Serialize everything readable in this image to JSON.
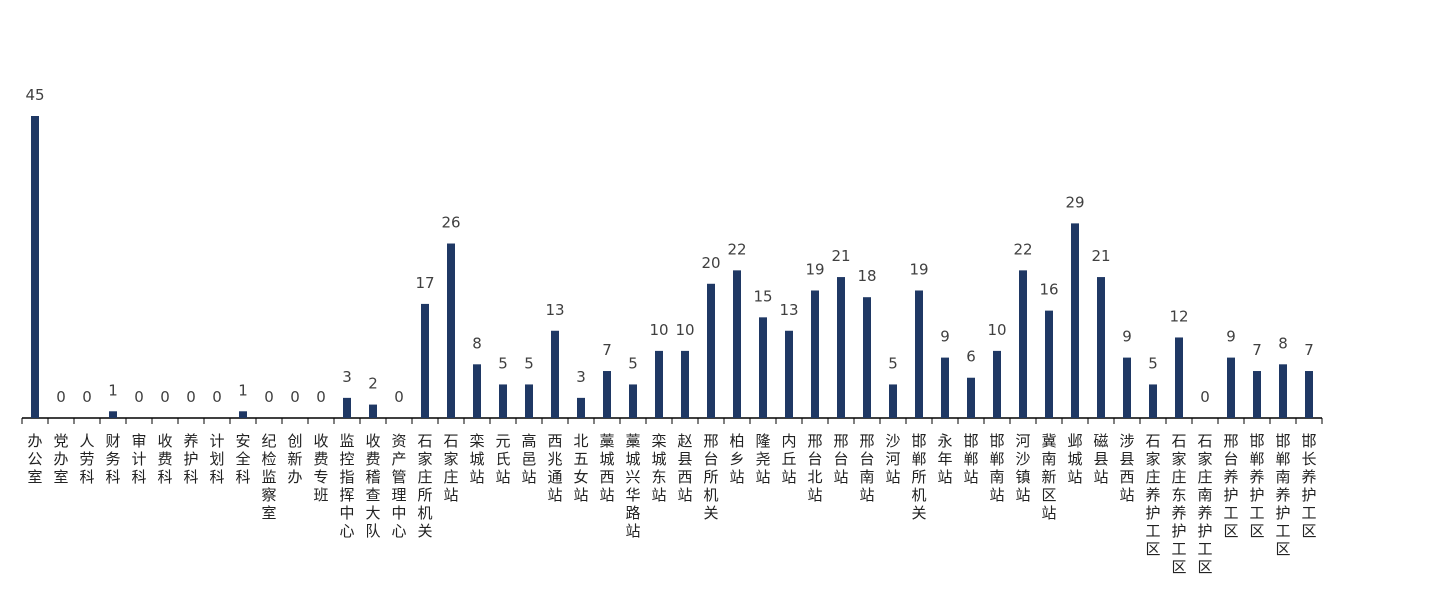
{
  "chart_data": {
    "type": "bar",
    "title": "",
    "xlabel": "",
    "ylabel": "",
    "ylim": [
      0,
      45
    ],
    "grid": false,
    "legend": "none",
    "bar_color": "#1f3864",
    "categories": [
      "办公室",
      "党办室",
      "人劳科",
      "财务科",
      "审计科",
      "收费科",
      "养护科",
      "计划科",
      "安全科",
      "纪检监察室",
      "创新办",
      "收费专班",
      "监控指挥中心",
      "收费稽查大队",
      "资产管理中心",
      "石家庄所机关",
      "石家庄站",
      "栾城站",
      "元氏站",
      "高邑站",
      "西兆通站",
      "北五女站",
      "藁城西站",
      "藁城兴华路站",
      "栾城东站",
      "赵县西站",
      "邢台所机关",
      "柏乡站",
      "隆尧站",
      "内丘站",
      "邢台北站",
      "邢台站",
      "邢台南站",
      "沙河站",
      "邯郸所机关",
      "永年站",
      "邯郸站",
      "邯郸南站",
      "河沙镇站",
      "冀南新区站",
      "邺城站",
      "磁县站",
      "涉县西站",
      "石家庄养护工区",
      "石家庄东养护工区",
      "石家庄南养护工区",
      "邢台养护工区",
      "邯郸养护工区",
      "邯郸南养护工区",
      "邯长养护工区"
    ],
    "values": [
      45,
      0,
      0,
      1,
      0,
      0,
      0,
      0,
      1,
      0,
      0,
      0,
      3,
      2,
      0,
      17,
      26,
      8,
      5,
      5,
      13,
      3,
      7,
      5,
      10,
      10,
      20,
      22,
      15,
      13,
      19,
      21,
      18,
      5,
      19,
      9,
      6,
      10,
      22,
      16,
      29,
      21,
      9,
      5,
      12,
      0,
      9,
      7,
      8,
      7
    ]
  }
}
